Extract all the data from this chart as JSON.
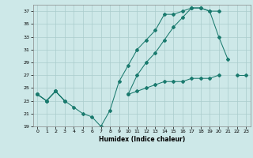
{
  "xlabel": "Humidex (Indice chaleur)",
  "bg_color": "#cde8e8",
  "line_color": "#1a7a6e",
  "grid_color": "#aacccc",
  "xlim": [
    -0.5,
    23.5
  ],
  "ylim": [
    19,
    38
  ],
  "yticks": [
    19,
    21,
    23,
    25,
    27,
    29,
    31,
    33,
    35,
    37
  ],
  "xticks": [
    0,
    1,
    2,
    3,
    4,
    5,
    6,
    7,
    8,
    9,
    10,
    11,
    12,
    13,
    14,
    15,
    16,
    17,
    18,
    19,
    20,
    21,
    22,
    23
  ],
  "line1_y": [
    24.0,
    23.0,
    24.5,
    23.0,
    22.0,
    21.0,
    20.5,
    19.0,
    21.5,
    26.0,
    28.5,
    31.0,
    32.5,
    34.0,
    36.5,
    36.5,
    37.0,
    37.5,
    37.5,
    37.0,
    33.0,
    29.5,
    null,
    null
  ],
  "line2_y": [
    24.0,
    23.0,
    24.5,
    23.0,
    null,
    null,
    null,
    null,
    null,
    null,
    24.0,
    27.0,
    29.0,
    30.5,
    32.5,
    34.5,
    36.0,
    37.5,
    37.5,
    37.0,
    37.0,
    null,
    null,
    null
  ],
  "line3_y": [
    24.0,
    23.0,
    24.5,
    23.0,
    null,
    null,
    null,
    null,
    null,
    null,
    24.0,
    24.5,
    25.0,
    25.5,
    26.0,
    26.0,
    26.0,
    26.5,
    26.5,
    26.5,
    27.0,
    null,
    27.0,
    27.0
  ]
}
